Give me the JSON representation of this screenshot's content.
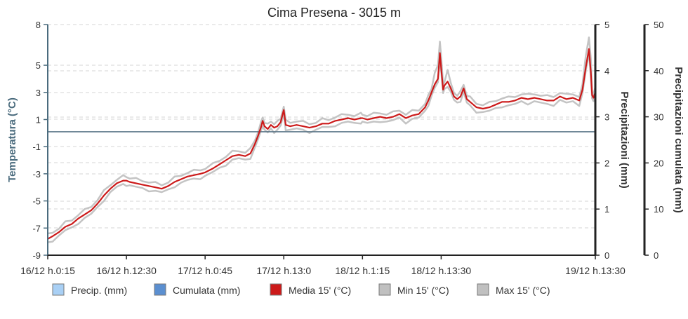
{
  "chart_data": {
    "type": "line",
    "title": "Cima Presena - 3015 m",
    "y_left": {
      "label": "Temperatura (°C)",
      "range": [
        -9,
        8
      ],
      "ticks": [
        8,
        5,
        3,
        1,
        -1,
        -3,
        -5,
        -7,
        -9
      ],
      "color": "#4a6b7d"
    },
    "y_right1": {
      "label": "Precipitazioni (mm)",
      "range": [
        0,
        5
      ],
      "ticks": [
        0,
        1,
        2,
        3,
        4,
        5
      ],
      "color": "#333333"
    },
    "y_right2": {
      "label": "Precipitazioni cumulata (mm)",
      "range": [
        0,
        50
      ],
      "ticks": [
        0,
        10,
        20,
        30,
        40,
        50
      ],
      "color": "#333333"
    },
    "x_ticks": [
      "16/12 h.0:15",
      "16/12 h.12:30",
      "17/12 h.0:45",
      "17/12 h.13:0",
      "18/12 h.1:15",
      "18/12 h.13:30",
      "19/12 h.13:30"
    ],
    "x_tick_hours": [
      0.25,
      12.5,
      24.75,
      37,
      49.25,
      61.5,
      85.5
    ],
    "x_range": [
      0.25,
      85.5
    ],
    "grid": "horizontal dashed",
    "legend_position": "bottom",
    "series": [
      {
        "name": "Precip. (mm)",
        "color": "#a9d0f5",
        "values": []
      },
      {
        "name": "Cumulata (mm)",
        "color": "#5b8fd0",
        "values": [
          [
            0.25,
            0
          ],
          [
            85.5,
            0
          ]
        ]
      },
      {
        "name": "Media 15' (°C)",
        "color": "#cc1a1a",
        "values": [
          [
            0.25,
            -7.8
          ],
          [
            1,
            -7.6
          ],
          [
            2,
            -7.3
          ],
          [
            3,
            -6.9
          ],
          [
            4,
            -6.7
          ],
          [
            5,
            -6.3
          ],
          [
            6,
            -6.0
          ],
          [
            7,
            -5.7
          ],
          [
            8,
            -5.2
          ],
          [
            9,
            -4.6
          ],
          [
            10,
            -4.1
          ],
          [
            11,
            -3.7
          ],
          [
            12,
            -3.5
          ],
          [
            12.5,
            -3.5
          ],
          [
            13,
            -3.6
          ],
          [
            14,
            -3.7
          ],
          [
            15,
            -3.8
          ],
          [
            16,
            -3.9
          ],
          [
            17,
            -4.0
          ],
          [
            18,
            -4.1
          ],
          [
            19,
            -3.9
          ],
          [
            20,
            -3.6
          ],
          [
            21,
            -3.4
          ],
          [
            22,
            -3.2
          ],
          [
            23,
            -3.1
          ],
          [
            24,
            -3.0
          ],
          [
            24.75,
            -2.9
          ],
          [
            26,
            -2.6
          ],
          [
            27,
            -2.3
          ],
          [
            28,
            -2.0
          ],
          [
            29,
            -1.7
          ],
          [
            30,
            -1.6
          ],
          [
            31,
            -1.7
          ],
          [
            31.8,
            -1.5
          ],
          [
            32.5,
            -0.8
          ],
          [
            33,
            -0.2
          ],
          [
            33.5,
            0.5
          ],
          [
            33.7,
            0.9
          ],
          [
            34,
            0.5
          ],
          [
            34.5,
            0.3
          ],
          [
            35,
            0.6
          ],
          [
            35.5,
            0.4
          ],
          [
            36,
            0.5
          ],
          [
            36.5,
            0.8
          ],
          [
            37,
            1.7
          ],
          [
            37.3,
            0.6
          ],
          [
            38,
            0.5
          ],
          [
            39,
            0.6
          ],
          [
            40,
            0.5
          ],
          [
            41,
            0.4
          ],
          [
            42,
            0.5
          ],
          [
            43,
            0.7
          ],
          [
            44,
            0.7
          ],
          [
            45,
            0.9
          ],
          [
            46,
            1.0
          ],
          [
            47,
            1.1
          ],
          [
            48,
            1.0
          ],
          [
            49,
            1.1
          ],
          [
            49.25,
            1.1
          ],
          [
            50,
            1.0
          ],
          [
            51,
            1.1
          ],
          [
            52,
            1.2
          ],
          [
            53,
            1.1
          ],
          [
            54,
            1.2
          ],
          [
            55,
            1.4
          ],
          [
            56,
            1.1
          ],
          [
            57,
            1.3
          ],
          [
            58,
            1.4
          ],
          [
            59,
            1.9
          ],
          [
            59.5,
            2.4
          ],
          [
            60,
            3.0
          ],
          [
            60.5,
            3.6
          ],
          [
            61,
            4.0
          ],
          [
            61.3,
            5.9
          ],
          [
            61.5,
            4.8
          ],
          [
            61.8,
            3.2
          ],
          [
            62,
            3.5
          ],
          [
            62.5,
            3.8
          ],
          [
            63,
            3.3
          ],
          [
            63.5,
            2.7
          ],
          [
            64,
            2.5
          ],
          [
            64.5,
            2.7
          ],
          [
            65,
            3.3
          ],
          [
            65.5,
            2.5
          ],
          [
            66,
            2.3
          ],
          [
            67,
            1.9
          ],
          [
            68,
            1.8
          ],
          [
            69,
            1.9
          ],
          [
            70,
            2.1
          ],
          [
            71,
            2.3
          ],
          [
            72,
            2.3
          ],
          [
            73,
            2.4
          ],
          [
            74,
            2.6
          ],
          [
            75,
            2.5
          ],
          [
            76,
            2.6
          ],
          [
            77,
            2.5
          ],
          [
            78,
            2.4
          ],
          [
            79,
            2.4
          ],
          [
            80,
            2.7
          ],
          [
            81,
            2.5
          ],
          [
            82,
            2.6
          ],
          [
            83,
            2.4
          ],
          [
            83.5,
            3.2
          ],
          [
            84,
            4.8
          ],
          [
            84.5,
            6.2
          ],
          [
            84.8,
            4.5
          ],
          [
            85,
            2.8
          ],
          [
            85.2,
            2.6
          ],
          [
            85.5,
            3.0
          ]
        ]
      },
      {
        "name": "Min 15' (°C)",
        "color": "#c0c0c0",
        "values": []
      },
      {
        "name": "Max 15' (°C)",
        "color": "#c0c0c0",
        "values": []
      }
    ]
  }
}
